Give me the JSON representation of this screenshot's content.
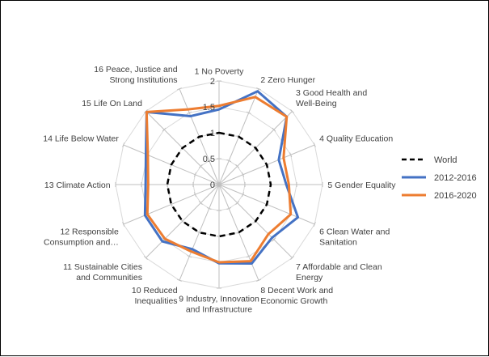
{
  "chart_data": {
    "type": "radar",
    "axes": [
      [
        "1 No Poverty"
      ],
      [
        "2 Zero Hunger"
      ],
      [
        "3 Good Health and",
        "Well-Being"
      ],
      [
        "4 Quality Education"
      ],
      [
        "5 Gender Equality"
      ],
      [
        "6 Clean Water and",
        "Sanitation"
      ],
      [
        "7 Affordable and Clean",
        "Energy"
      ],
      [
        "8 Decent Work and",
        "Economic Growth"
      ],
      [
        "9 Industry, Innovation",
        "and Infrastructure"
      ],
      [
        "10 Reduced",
        "Inequalities"
      ],
      [
        "11 Sustainable Cities",
        "and Communities"
      ],
      [
        "12 Responsible",
        "Consumption and…"
      ],
      [
        "13 Climate Action"
      ],
      [
        "14 Life Below Water"
      ],
      [
        "15 Life On Land"
      ],
      [
        "16 Peace, Justice and",
        "Strong Institutions"
      ]
    ],
    "ticks": [
      0,
      0.5,
      1,
      1.5,
      2
    ],
    "tick_labels": [
      "0",
      "0.5",
      "1",
      "1.5",
      "2"
    ],
    "rmax": 2,
    "series": [
      {
        "name": "World",
        "color": "#000000",
        "dash": true,
        "values": [
          1,
          1,
          1,
          1,
          1,
          1,
          1,
          1,
          1,
          1,
          1,
          1,
          1,
          1,
          1,
          1
        ]
      },
      {
        "name": "2012-2016",
        "color": "#4472C4",
        "values": [
          1.45,
          1.95,
          1.85,
          1.25,
          1.3,
          1.65,
          1.45,
          1.65,
          1.52,
          1.35,
          1.55,
          1.55,
          1.42,
          1.53,
          1.98,
          1.43
        ]
      },
      {
        "name": "2016-2020",
        "color": "#ED7D31",
        "values": [
          1.52,
          1.83,
          1.85,
          1.35,
          1.35,
          1.5,
          1.35,
          1.6,
          1.5,
          1.4,
          1.48,
          1.5,
          1.37,
          1.49,
          1.98,
          1.57
        ]
      }
    ],
    "legend_position": "right",
    "grid": true
  }
}
